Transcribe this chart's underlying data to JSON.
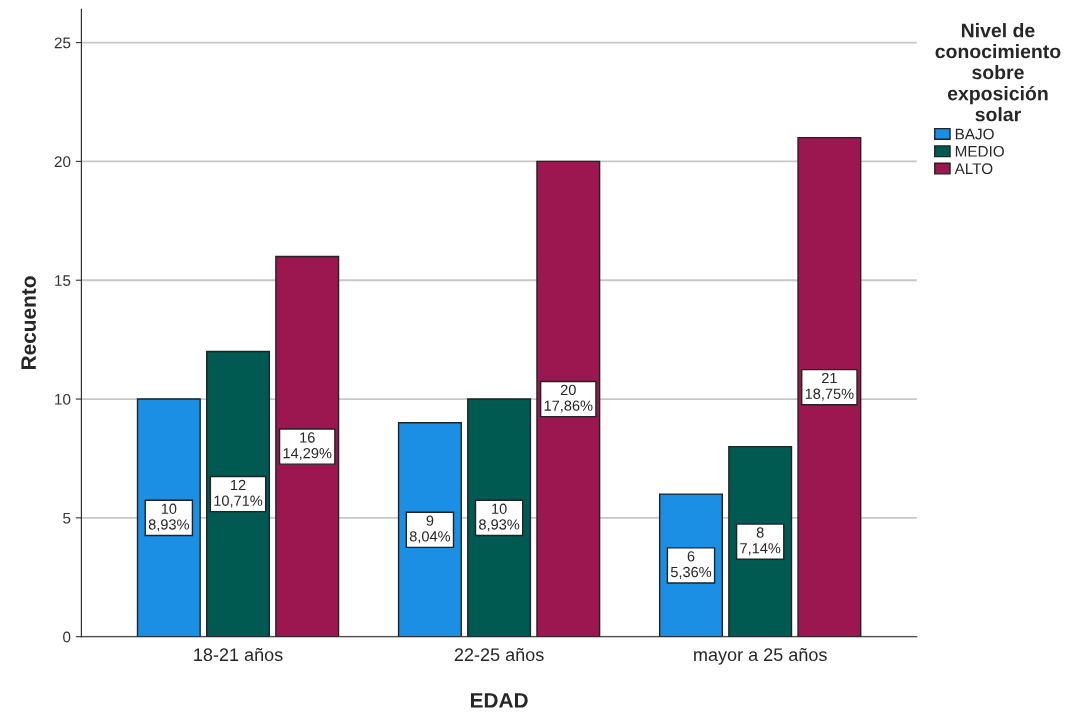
{
  "chart_data": {
    "type": "bar",
    "xlabel": "EDAD",
    "ylabel": "Recuento",
    "legend_title": "Nivel de\nconocimiento\nsobre\nexposición\nsolar",
    "categories": [
      "18-21 años",
      "22-25 años",
      "mayor a 25 años"
    ],
    "series": [
      {
        "name": "BAJO",
        "color": "#1a8fe3",
        "values": [
          10,
          9,
          6
        ],
        "value_labels": [
          "10\n8,93%",
          "9\n8,04%",
          "6\n5,36%"
        ]
      },
      {
        "name": "MEDIO",
        "color": "#005a52",
        "values": [
          12,
          10,
          8
        ],
        "value_labels": [
          "12\n10,71%",
          "10\n8,93%",
          "8\n7,14%"
        ]
      },
      {
        "name": "ALTO",
        "color": "#9c1750",
        "values": [
          16,
          20,
          21
        ],
        "value_labels": [
          "16\n14,29%",
          "20\n17,86%",
          "21\n18,75%"
        ]
      }
    ],
    "ylim": [
      0,
      26.4
    ],
    "yticks": [
      0,
      5,
      10,
      15,
      20,
      25
    ],
    "grid": "y",
    "legend": "right"
  }
}
